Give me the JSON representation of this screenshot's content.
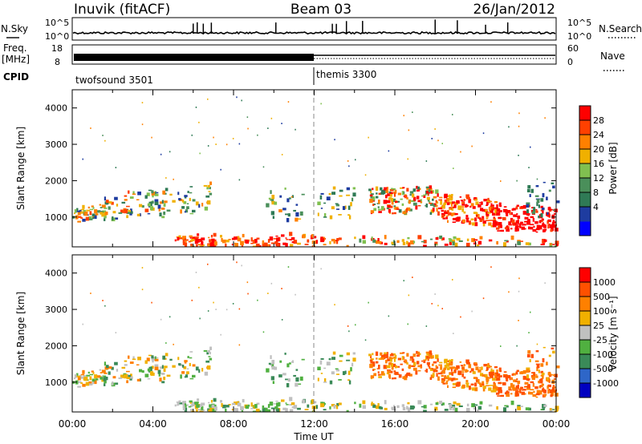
{
  "header": {
    "station": "Inuvik (fitACF)",
    "beam": "Beam 03",
    "date": "26/Jan/2012"
  },
  "top_panels": {
    "nsky_label": "N.Sky",
    "nsearch_label": "N.Search",
    "noise_ticks": [
      "10^5",
      "10^0"
    ],
    "freq_label": "Freq.",
    "freq_unit": "[MHz]",
    "freq_ticks": [
      "18",
      "8"
    ],
    "nave_label": "Nave",
    "nave_ticks": [
      "60",
      "0"
    ],
    "cpid_label": "CPID",
    "cpid_1": "twofsound 3501",
    "cpid_2": "themis 3300"
  },
  "colors": {
    "power_scale": [
      "#0000ff",
      "#1e3ca0",
      "#2f7a55",
      "#4a8f5a",
      "#80c050",
      "#f0b000",
      "#ff8000",
      "#ff4000",
      "#ff0000"
    ],
    "velocity_scale": [
      "#0000c0",
      "#2e66c8",
      "#3a8a58",
      "#50b040",
      "#c0c0c0",
      "#f0b000",
      "#ff8000",
      "#ff5000",
      "#ff0000"
    ]
  },
  "chart_data": [
    {
      "type": "heatmap",
      "title": "Power",
      "xlabel": "",
      "ylabel": "Slant Range [km]",
      "x_ticks": [
        "00:00",
        "04:00",
        "08:00",
        "12:00",
        "16:00",
        "20:00",
        "00:00"
      ],
      "y_ticks": [
        "1000",
        "2000",
        "3000",
        "4000"
      ],
      "ylim": [
        180,
        4500
      ],
      "xlim_hours": [
        0,
        24
      ],
      "colorbar_label": "Power [dB]",
      "colorbar_ticks": [
        "28",
        "24",
        "20",
        "16",
        "12",
        "8",
        "4"
      ],
      "colorbar_range": [
        0,
        32
      ]
    },
    {
      "type": "heatmap",
      "title": "Velocity",
      "xlabel": "Time UT",
      "ylabel": "Slant Range [km]",
      "x_ticks": [
        "00:00",
        "04:00",
        "08:00",
        "12:00",
        "16:00",
        "20:00",
        "00:00"
      ],
      "y_ticks": [
        "1000",
        "2000",
        "3000",
        "4000"
      ],
      "ylim": [
        180,
        4500
      ],
      "xlim_hours": [
        0,
        24
      ],
      "colorbar_label": "Velocity [m s⁻¹]",
      "colorbar_ticks": [
        "1000",
        "500",
        "100",
        "25",
        "-25",
        "-100",
        "-500",
        "-1000"
      ]
    }
  ]
}
